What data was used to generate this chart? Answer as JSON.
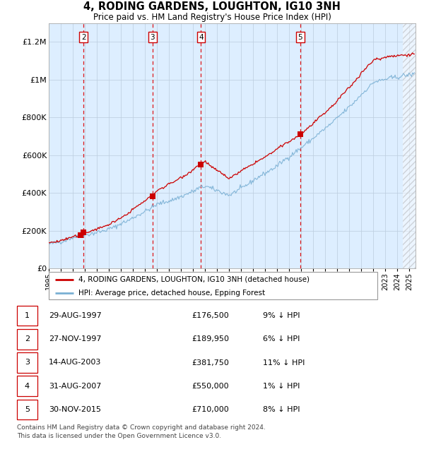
{
  "title": "4, RODING GARDENS, LOUGHTON, IG10 3NH",
  "subtitle": "Price paid vs. HM Land Registry's House Price Index (HPI)",
  "ylabel_vals": [
    "£0",
    "£200K",
    "£400K",
    "£600K",
    "£800K",
    "£1M",
    "£1.2M"
  ],
  "ylim": [
    0,
    1300000
  ],
  "yticks": [
    0,
    200000,
    400000,
    600000,
    800000,
    1000000,
    1200000
  ],
  "xlim_start": 1995.0,
  "xlim_end": 2025.5,
  "transactions": [
    {
      "num": 1,
      "date": "29-AUG-1997",
      "year": 1997.65,
      "price": 176500,
      "pct": "9%"
    },
    {
      "num": 2,
      "date": "27-NOV-1997",
      "year": 1997.9,
      "price": 189950,
      "pct": "6%"
    },
    {
      "num": 3,
      "date": "14-AUG-2003",
      "year": 2003.62,
      "price": 381750,
      "pct": "11%"
    },
    {
      "num": 4,
      "date": "31-AUG-2007",
      "year": 2007.66,
      "price": 550000,
      "pct": "1%"
    },
    {
      "num": 5,
      "date": "30-NOV-2015",
      "year": 2015.92,
      "price": 710000,
      "pct": "8%"
    }
  ],
  "hpi_color": "#7ab0d4",
  "price_color": "#cc0000",
  "bg_color": "#ddeeff",
  "grid_color": "#bbccdd",
  "dashed_line_color": "#dd0000",
  "box_edge_color": "#cc0000",
  "legend_label_price": "4, RODING GARDENS, LOUGHTON, IG10 3NH (detached house)",
  "legend_label_hpi": "HPI: Average price, detached house, Epping Forest",
  "footer_text": "Contains HM Land Registry data © Crown copyright and database right 2024.\nThis data is licensed under the Open Government Licence v3.0.",
  "table_rows": [
    [
      "1",
      "29-AUG-1997",
      "£176,500",
      "9% ↓ HPI"
    ],
    [
      "2",
      "27-NOV-1997",
      "£189,950",
      "6% ↓ HPI"
    ],
    [
      "3",
      "14-AUG-2003",
      "£381,750",
      "11% ↓ HPI"
    ],
    [
      "4",
      "31-AUG-2007",
      "£550,000",
      "1% ↓ HPI"
    ],
    [
      "5",
      "30-NOV-2015",
      "£710,000",
      "8% ↓ HPI"
    ]
  ]
}
